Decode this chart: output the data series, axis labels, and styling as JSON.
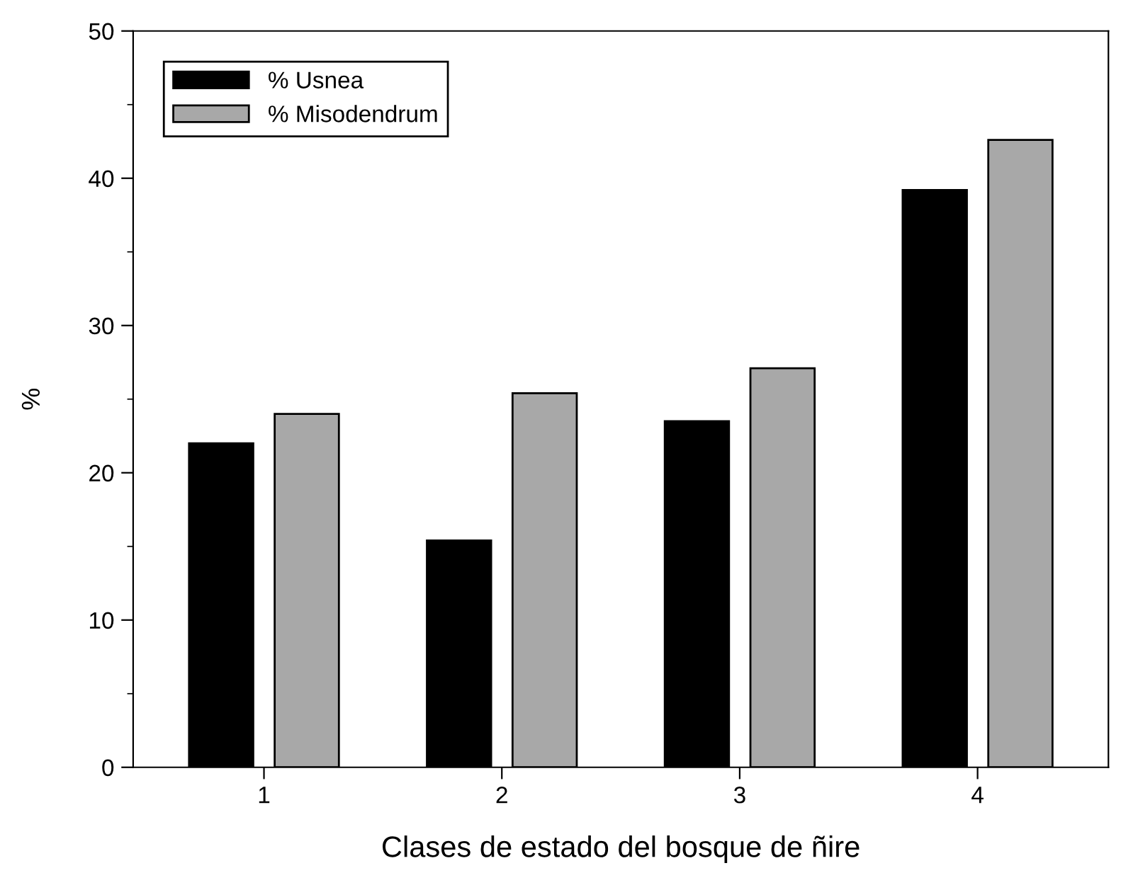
{
  "chart_data": {
    "type": "bar",
    "xlabel": "Clases de estado del bosque de ñire",
    "ylabel": "%",
    "categories": [
      "1",
      "2",
      "3",
      "4"
    ],
    "series": [
      {
        "name": "% Usnea",
        "color": "#000000",
        "values": [
          22.0,
          15.4,
          23.5,
          39.2
        ]
      },
      {
        "name": "% Misodendrum",
        "color": "#a8a8a8",
        "values": [
          24.0,
          25.4,
          27.1,
          42.6
        ]
      }
    ],
    "ylim": [
      0,
      50
    ],
    "yticks": [
      0,
      {
        "value": 5,
        "label": null
      },
      10,
      {
        "value": 15,
        "label": null
      },
      20,
      {
        "value": 25,
        "label": null
      },
      30,
      {
        "value": 35,
        "label": null
      },
      40,
      {
        "value": 45,
        "label": null
      },
      50
    ],
    "grid": false,
    "legend": "top left"
  }
}
